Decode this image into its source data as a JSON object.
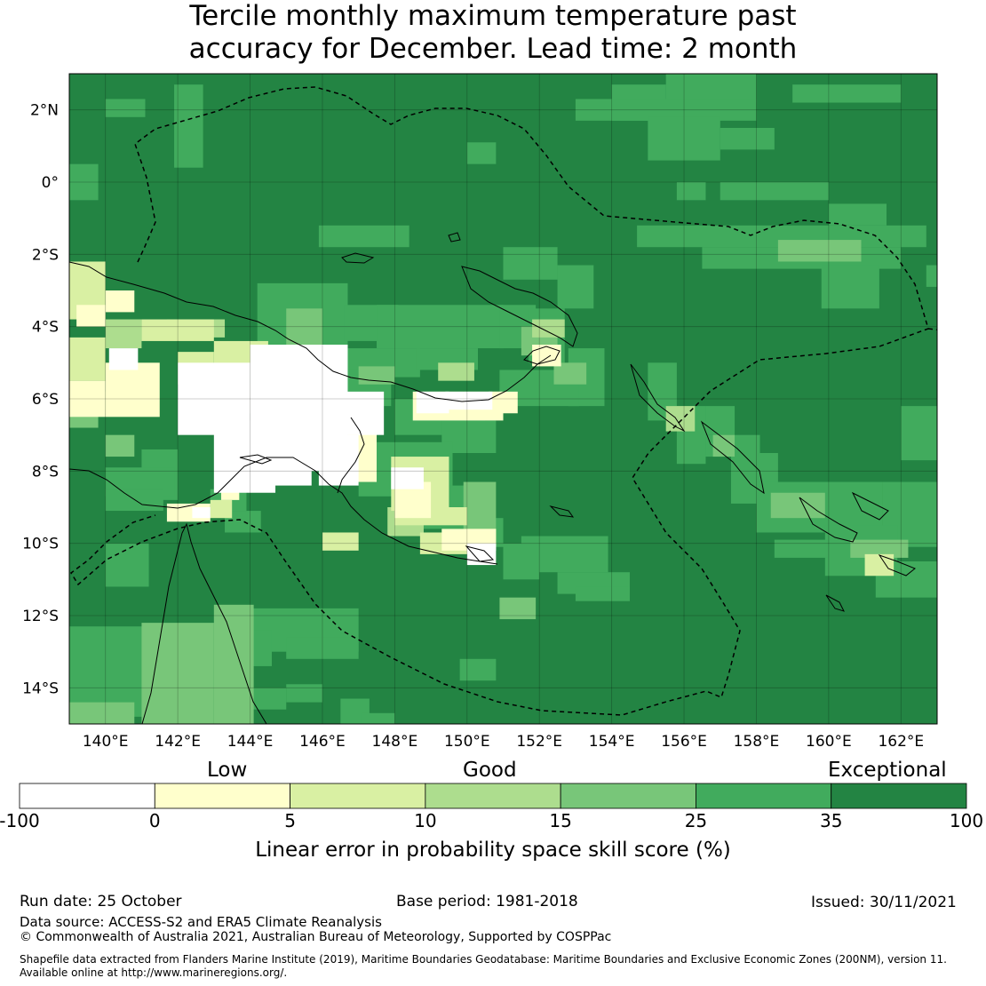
{
  "title_line1": "Tercile monthly maximum temperature past",
  "title_line2": "accuracy for December. Lead time: 2 month",
  "map": {
    "lon_range": [
      139,
      163
    ],
    "lat_range": [
      -15,
      3
    ],
    "lon_ticks": [
      "140°E",
      "142°E",
      "144°E",
      "146°E",
      "148°E",
      "150°E",
      "152°E",
      "154°E",
      "156°E",
      "158°E",
      "160°E",
      "162°E"
    ],
    "lat_ticks": [
      "2°N",
      "0°",
      "2°S",
      "4°S",
      "6°S",
      "8°S",
      "10°S",
      "12°S",
      "14°S"
    ],
    "regions": [
      {
        "category": "-100 to 0",
        "lon": [
          142.0,
          146.5
        ],
        "lat": [
          -8.2,
          -4.5
        ]
      },
      {
        "category": "0 to 5",
        "lon": [
          140.0,
          142.0
        ],
        "lat": [
          -6.5,
          -4.5
        ]
      },
      {
        "category": "5 to 10",
        "lon": [
          139.0,
          141.0
        ],
        "lat": [
          -5.5,
          -2.2
        ]
      },
      {
        "category": "10 to 15",
        "lon": [
          139.0,
          140.0
        ],
        "lat": [
          -7.0,
          -5.8
        ]
      },
      {
        "category": "15 to 25",
        "lon": [
          141.0,
          143.0
        ],
        "lat": [
          -15.0,
          -12.2
        ]
      },
      {
        "category": "25 to 35",
        "lon": [
          146.0,
          151.0
        ],
        "lat": [
          -7.0,
          -3.2
        ]
      },
      {
        "category": "35 to 100",
        "lon": [
          139.0,
          163.0
        ],
        "lat": [
          -15.0,
          3.0
        ]
      }
    ]
  },
  "legend": {
    "qualitative": [
      "Low",
      "Good",
      "Exceptional"
    ],
    "ticks": [
      "-100",
      "0",
      "5",
      "10",
      "15",
      "25",
      "35",
      "100"
    ],
    "colors": [
      "#ffffff",
      "#ffffcc",
      "#d9f0a3",
      "#addd8e",
      "#78c679",
      "#41ab5d",
      "#238443"
    ],
    "xlabel": "Linear error in probability space skill score (%)"
  },
  "footer": {
    "run_date": "Run date: 25 October",
    "base_period": "Base period: 1981-2018",
    "issued": "Issued: 30/11/2021",
    "data_source": "Data source: ACCESS-S2 and ERA5 Climate Reanalysis",
    "copyright": "© Commonwealth of Australia 2021, Australian Bureau of Meteorology, Supported by COSPPac",
    "shapefile_line1": "Shapefile data extracted from Flanders Marine Institute (2019), Maritime Boundaries Geodatabase: Maritime Boundaries and Exclusive Economic Zones (200NM), version 11.",
    "shapefile_line2": "Available online at http://www.marineregions.org/."
  }
}
